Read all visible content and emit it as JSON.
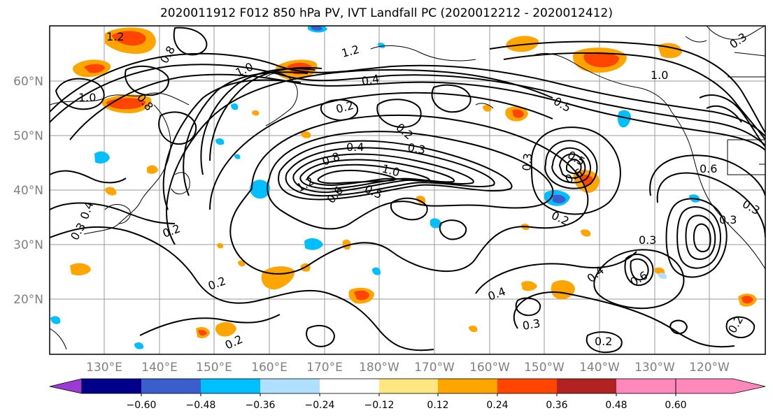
{
  "title": "2020011912 F012 850 hPa PV, IVT Landfall PC (2020012212 - 2020012412)",
  "lat_labels": [
    "60°N",
    "50°N",
    "40°N",
    "30°N",
    "20°N"
  ],
  "lon_labels": [
    "130°E",
    "140°E",
    "150°E",
    "160°E",
    "170°E",
    "180°W",
    "170°W",
    "160°W",
    "150°W",
    "140°W",
    "130°W",
    "120°W"
  ],
  "colorbar": {
    "ticks": [
      "−0.60",
      "−0.48",
      "−0.36",
      "−0.24",
      "−0.12",
      "0.12",
      "0.24",
      "0.36",
      "0.48",
      "0.60"
    ],
    "colors": [
      "#9b3bd4",
      "#00008b",
      "#3a5fcd",
      "#00bfff",
      "#b0e0ff",
      "#ffffff",
      "#ffe680",
      "#ffa500",
      "#ff4500",
      "#b22222",
      "#ff88bb"
    ]
  },
  "contour_labels": [
    "1.2",
    "0.8",
    "1.0",
    "0.8",
    "1.0",
    "1.2",
    "0.4",
    "1.0",
    "0.5",
    "0.2",
    "0.2",
    "0.4",
    "0.3",
    "0.8",
    "1.0",
    "1.2",
    "0.5",
    "0.6",
    "0.3",
    "0.5",
    "0.6",
    "0.2",
    "0.3",
    "0.4",
    "0.6",
    "0.4",
    "0.3",
    "0.2",
    "0.2",
    "0.2",
    "0.3",
    "0.4",
    "0.3",
    "0.3",
    "0.2",
    "0.6",
    "0.3",
    "0.2"
  ]
}
